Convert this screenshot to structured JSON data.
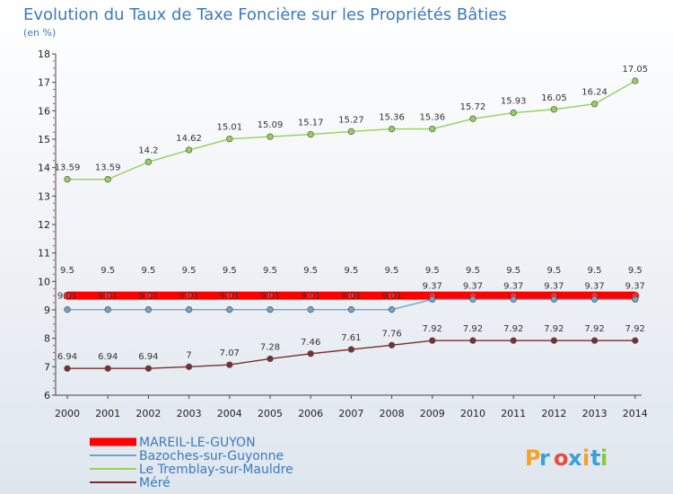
{
  "chart_data": {
    "type": "line",
    "title": "Evolution du Taux de Taxe Foncière sur les Propriétés Bâties",
    "subtitle": "(en %)",
    "xlabel": "",
    "ylabel": "",
    "categories": [
      "2000",
      "2001",
      "2002",
      "2003",
      "2004",
      "2005",
      "2006",
      "2007",
      "2008",
      "2009",
      "2010",
      "2011",
      "2012",
      "2013",
      "2014"
    ],
    "yticks": [
      "6",
      "7",
      "8",
      "9",
      "10",
      "11",
      "12",
      "13",
      "14",
      "15",
      "16",
      "17",
      "18"
    ],
    "ylim": [
      6,
      18
    ],
    "grid": false,
    "legend_position": "bottom-left",
    "series": [
      {
        "name": "MAREIL-LE-GUYON",
        "color": "#ff0000",
        "values": [
          9.5,
          9.5,
          9.5,
          9.5,
          9.5,
          9.5,
          9.5,
          9.5,
          9.5,
          9.5,
          9.5,
          9.5,
          9.5,
          9.5,
          9.5
        ],
        "labels": [
          "9.5",
          "9.5",
          "9.5",
          "9.5",
          "9.5",
          "9.5",
          "9.5",
          "9.5",
          "9.5",
          "9.5",
          "9.5",
          "9.5",
          "9.5",
          "9.5",
          "9.5"
        ]
      },
      {
        "name": "Bazoches-sur-Guyonne",
        "color": "#6fa3cf",
        "values": [
          9.01,
          9.01,
          9.01,
          9.01,
          9.01,
          9.01,
          9.01,
          9.01,
          9.01,
          9.37,
          9.37,
          9.37,
          9.37,
          9.37,
          9.37
        ],
        "labels": [
          "9.01",
          "9.01",
          "9.01",
          "9.01",
          "9.01",
          "9.01",
          "9.01",
          "9.01",
          "9.01",
          "9.37",
          "9.37",
          "9.37",
          "9.37",
          "9.37",
          "9.37"
        ]
      },
      {
        "name": "Le Tremblay-sur-Mauldre",
        "color": "#93d25a",
        "values": [
          13.59,
          13.59,
          14.2,
          14.62,
          15.01,
          15.09,
          15.17,
          15.27,
          15.36,
          15.36,
          15.72,
          15.93,
          16.05,
          16.24,
          17.05
        ],
        "labels": [
          "13.59",
          "13.59",
          "14.2",
          "14.62",
          "15.01",
          "15.09",
          "15.17",
          "15.27",
          "15.36",
          "15.36",
          "15.72",
          "15.93",
          "16.05",
          "16.24",
          "17.05"
        ]
      },
      {
        "name": "Méré",
        "color": "#7a2e2e",
        "values": [
          6.94,
          6.94,
          6.94,
          7,
          7.07,
          7.28,
          7.46,
          7.61,
          7.76,
          7.92,
          7.92,
          7.92,
          7.92,
          7.92,
          7.92
        ],
        "labels": [
          "6.94",
          "6.94",
          "6.94",
          "7",
          "7.07",
          "7.28",
          "7.46",
          "7.61",
          "7.76",
          "7.92",
          "7.92",
          "7.92",
          "7.92",
          "7.92",
          "7.92"
        ]
      }
    ]
  },
  "logo": {
    "text": "Proxiti",
    "colors": [
      "#f2a32a",
      "#3aa1d8",
      "#e84c3d",
      "#3aa1d8",
      "#f2a32a",
      "#3aa1d8",
      "#8cc63f"
    ]
  },
  "style": {
    "title_color": "#3a7bbf",
    "axis_color": "#444444"
  }
}
